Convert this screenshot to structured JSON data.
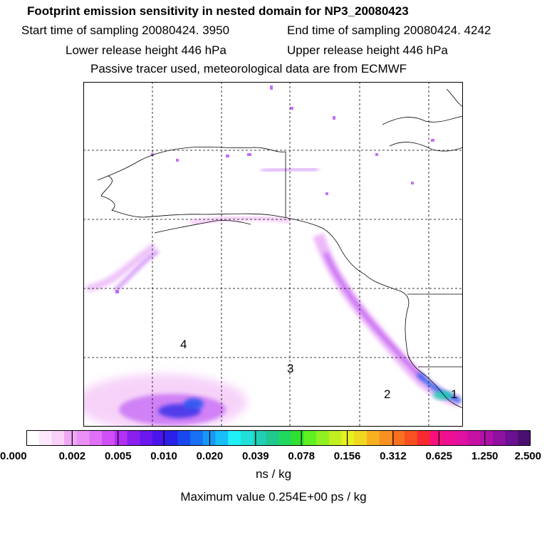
{
  "header": {
    "title": "Footprint emission sensitivity in nested domain for NP3_20080423",
    "start_time": "Start time of sampling 20080424.  3950",
    "end_time": "End time of sampling 20080424.  4242",
    "lower_release": "Lower release height  446 hPa",
    "upper_release": "Upper release height  446 hPa",
    "tracer_info": "Passive tracer used, meteorological data are from ECMWF"
  },
  "chart_data": {
    "type": "heatmap",
    "region_labels": [
      "1",
      "2",
      "3",
      "4"
    ],
    "colorbar": {
      "tick_labels": [
        "0.000",
        "0.002",
        "0.005",
        "0.010",
        "0.020",
        "0.039",
        "0.078",
        "0.156",
        "0.312",
        "0.625",
        "1.250",
        "2.500"
      ],
      "colors": [
        "#ffffff",
        "#fce8fc",
        "#f8d0f8",
        "#f0a8f4",
        "#ea90f6",
        "#e070f8",
        "#d050f8",
        "#b430f4",
        "#8a20f0",
        "#6a18ee",
        "#4a14ec",
        "#2a20e8",
        "#1a48f0",
        "#1870f4",
        "#1898f6",
        "#18bef8",
        "#20f0f8",
        "#20e0d8",
        "#20d0b4",
        "#20c890",
        "#20d860",
        "#30e030",
        "#60f020",
        "#90f020",
        "#c0f020",
        "#e8f020",
        "#f0d820",
        "#f8b020",
        "#f89020",
        "#f87020",
        "#f85020",
        "#f82830",
        "#f8107c",
        "#ee1090",
        "#e010a0",
        "#c810a4",
        "#b010a8",
        "#9010a0",
        "#6a1090",
        "#4a1070"
      ],
      "units": "ns / kg"
    },
    "max_value": "Maximum value  0.254E+00 ps / kg",
    "grid": true
  }
}
